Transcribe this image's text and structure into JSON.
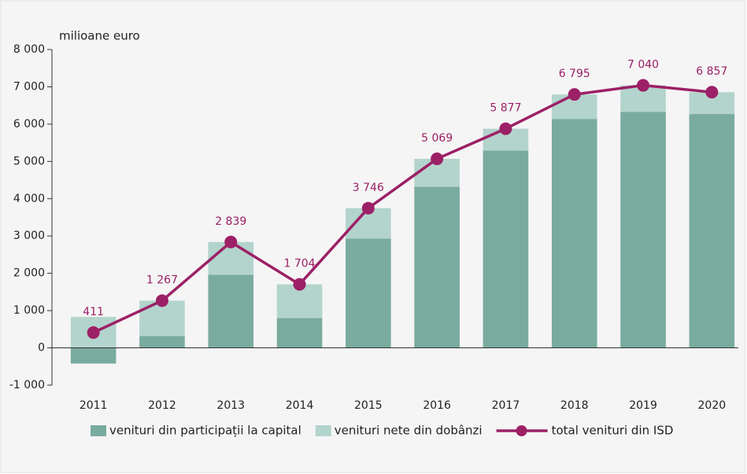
{
  "chart_data": {
    "type": "bar",
    "y_label": "milioane euro",
    "categories": [
      "2011",
      "2012",
      "2013",
      "2014",
      "2015",
      "2016",
      "2017",
      "2018",
      "2019",
      "2020"
    ],
    "series": [
      {
        "name": "venituri din participații la capital",
        "color": "#7aab9f",
        "values": [
          -420,
          320,
          1960,
          800,
          2930,
          4320,
          5290,
          6140,
          6330,
          6270
        ]
      },
      {
        "name": "venituri nete din dobânzi",
        "color": "#b3d4cc",
        "values": [
          830,
          947,
          879,
          904,
          816,
          749,
          587,
          655,
          710,
          587
        ]
      },
      {
        "name": "total venituri din ISD",
        "color": "#9c2066",
        "type": "line",
        "values": [
          411,
          1267,
          2839,
          1704,
          3746,
          5069,
          5877,
          6795,
          7040,
          6857
        ],
        "value_labels": [
          "411",
          "1 267",
          "2 839",
          "1 704",
          "3 746",
          "5 069",
          "5 877",
          "6 795",
          "7 040",
          "6 857"
        ]
      }
    ],
    "ylim": [
      -1000,
      8000
    ],
    "yticks": [
      {
        "value": -1000,
        "label": "-1 000"
      },
      0,
      {
        "value": 1000,
        "label": "1 000"
      },
      {
        "value": 2000,
        "label": "2 000"
      },
      {
        "value": 3000,
        "label": "3 000"
      },
      {
        "value": 4000,
        "label": "4 000"
      },
      {
        "value": 5000,
        "label": "5 000"
      },
      {
        "value": 6000,
        "label": "6 000"
      },
      {
        "value": 7000,
        "label": "7 000"
      },
      {
        "value": 8000,
        "label": "8 000"
      }
    ]
  }
}
